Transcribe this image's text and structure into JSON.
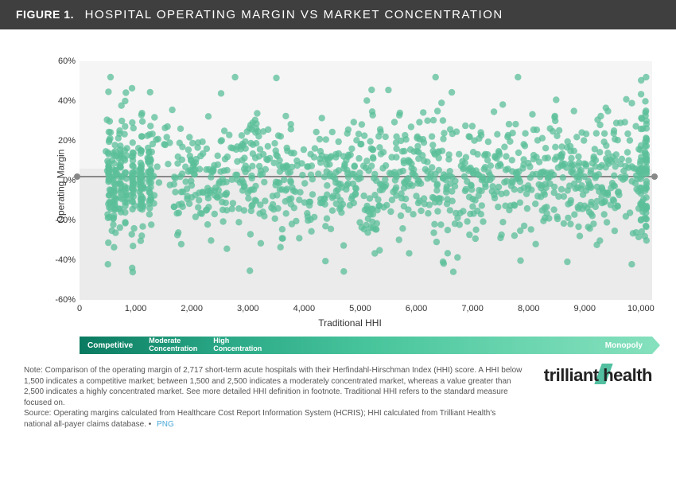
{
  "header": {
    "fignum": "FIGURE 1.",
    "title": "HOSPITAL OPERATING MARGIN VS MARKET CONCENTRATION"
  },
  "chart": {
    "type": "scatter",
    "ylabel": "Operating Margin",
    "xlabel": "Traditional HHI",
    "xlim": [
      0,
      10200
    ],
    "ylim": [
      -60,
      60
    ],
    "yticks": [
      -60,
      -40,
      -20,
      0,
      20,
      40,
      60
    ],
    "ytick_labels": [
      "-60%",
      "-40%",
      "-20%",
      "0%",
      "20%",
      "40%",
      "60%"
    ],
    "xticks": [
      0,
      1000,
      2000,
      3000,
      4000,
      5000,
      6000,
      7000,
      8000,
      9000,
      10000
    ],
    "xtick_labels": [
      "0",
      "1,000",
      "2,000",
      "3,000",
      "4,000",
      "5,000",
      "6,000",
      "7,000",
      "8,000",
      "9,000",
      "10,000"
    ],
    "zero_line_y": 2,
    "marker_color": "#5bbf9a",
    "marker_opacity": 0.75,
    "marker_radius": 4.2,
    "background_color": "#f5f5f5",
    "n_points": 1400,
    "seed": 42,
    "x_clusters": [
      520,
      620,
      720,
      820,
      950,
      1100,
      1250,
      10000,
      10090
    ]
  },
  "legend": {
    "segments": [
      "Competitive",
      "Moderate\nConcentration",
      "High\nConcentration"
    ],
    "right_label": "Monopoly",
    "gradient_from": "#0a7a60",
    "gradient_to": "#84e0bd"
  },
  "footer": {
    "note": "Note: Comparison of the operating margin of 2,717 short-term acute hospitals with their Herfindahl-Hirschman Index (HHI) score. A HHI below 1,500 indicates a competitive market; between 1,500 and 2,500 indicates a moderately concentrated market, whereas a value greater than 2,500 indicates a highly concentrated market. See more detailed HHI definition in footnote. Traditional HHI refers to the standard measure focused on.",
    "source": "Source: Operating margins calculated from Healthcare Cost Report Information System (HCRIS); HHI calculated from Trilliant Health's national all-payer claims database.  •",
    "png_label": "PNG",
    "logo": "trilliant health"
  }
}
